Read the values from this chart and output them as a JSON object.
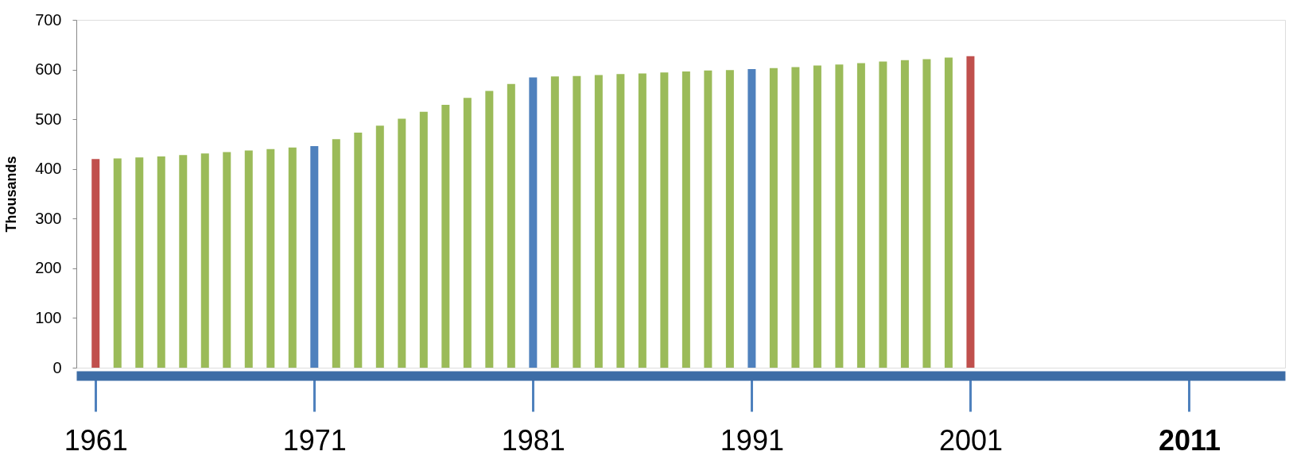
{
  "chart_data": {
    "type": "bar",
    "ylabel": "Thousands",
    "x": [
      1961,
      1962,
      1963,
      1964,
      1965,
      1966,
      1967,
      1968,
      1969,
      1970,
      1971,
      1972,
      1973,
      1974,
      1975,
      1976,
      1977,
      1978,
      1979,
      1980,
      1981,
      1982,
      1983,
      1984,
      1985,
      1986,
      1987,
      1988,
      1989,
      1990,
      1991,
      1992,
      1993,
      1994,
      1995,
      1996,
      1997,
      1998,
      1999,
      2000,
      2001
    ],
    "values": [
      420,
      421,
      423,
      425,
      428,
      431,
      434,
      437,
      440,
      443,
      446,
      460,
      473,
      487,
      501,
      515,
      529,
      543,
      557,
      571,
      584,
      586,
      587,
      589,
      591,
      592,
      594,
      596,
      598,
      599,
      601,
      603,
      605,
      608,
      610,
      613,
      616,
      619,
      621,
      624,
      627
    ],
    "colors": [
      "#c0504d",
      "#9bbb59",
      "#9bbb59",
      "#9bbb59",
      "#9bbb59",
      "#9bbb59",
      "#9bbb59",
      "#9bbb59",
      "#9bbb59",
      "#9bbb59",
      "#4f81bd",
      "#9bbb59",
      "#9bbb59",
      "#9bbb59",
      "#9bbb59",
      "#9bbb59",
      "#9bbb59",
      "#9bbb59",
      "#9bbb59",
      "#9bbb59",
      "#4f81bd",
      "#9bbb59",
      "#9bbb59",
      "#9bbb59",
      "#9bbb59",
      "#9bbb59",
      "#9bbb59",
      "#9bbb59",
      "#9bbb59",
      "#9bbb59",
      "#4f81bd",
      "#9bbb59",
      "#9bbb59",
      "#9bbb59",
      "#9bbb59",
      "#9bbb59",
      "#9bbb59",
      "#9bbb59",
      "#9bbb59",
      "#9bbb59",
      "#c0504d"
    ],
    "xlim": [
      1960.3,
      2015.2
    ],
    "xticks": [
      1961,
      1971,
      1981,
      1991,
      2001,
      {
        "value": 2011,
        "label": "2011"
      }
    ],
    "ylim": [
      0,
      700
    ],
    "yticks": [
      0,
      100,
      200,
      300,
      400,
      500,
      600,
      700
    ],
    "grid": false
  }
}
